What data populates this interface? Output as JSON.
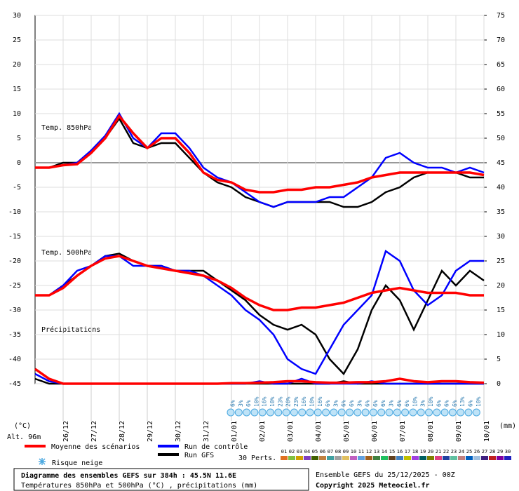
{
  "chart_data": {
    "type": "line",
    "categories": [
      null,
      null,
      "26/12",
      null,
      "27/12",
      null,
      "28/12",
      null,
      "29/12",
      null,
      "30/12",
      null,
      "31/12",
      null,
      "01/01",
      null,
      "02/01",
      null,
      "03/01",
      null,
      "04/01",
      null,
      "05/01",
      null,
      "06/01",
      null,
      "07/01",
      null,
      "08/01",
      null,
      "09/01",
      null,
      "10/01"
    ],
    "ylim": [
      -45,
      30
    ],
    "yticks": [
      30,
      25,
      20,
      15,
      10,
      5,
      0,
      -5,
      -10,
      -15,
      -20,
      -25,
      -30,
      -35,
      -40,
      -45
    ],
    "y2lim": [
      0,
      75
    ],
    "y2ticks": [
      75,
      70,
      65,
      60,
      55,
      50,
      45,
      40,
      35,
      30,
      25,
      20,
      15,
      10,
      5,
      0
    ],
    "y_unit": "(°C)",
    "y2_unit": "(mm)",
    "altitude": "Alt. 96m",
    "panel_labels": [
      "Temp. 850hPa",
      "Temp. 500hPa",
      "Précipitations"
    ],
    "series": [
      {
        "name": "Moyenne des scénarios",
        "color": "#ff0000",
        "t850": [
          -1,
          -1,
          -0.5,
          -0.3,
          2,
          5,
          9.5,
          6,
          3,
          5,
          5,
          2,
          -2,
          -3.5,
          -4,
          -5.5,
          -6,
          -6,
          -5.5,
          -5.5,
          -5,
          -5,
          -4.5,
          -4,
          -3,
          -2.5,
          -2,
          -2,
          -2,
          -2,
          -2,
          -2,
          -2.5
        ],
        "t500": [
          -27,
          -27,
          -25.5,
          -23,
          -21,
          -19.5,
          -19,
          -20,
          -21,
          -21.5,
          -22,
          -22.5,
          -23,
          -24,
          -25.5,
          -27.5,
          -29,
          -30,
          -30,
          -29.5,
          -29.5,
          -29,
          -28.5,
          -27.5,
          -26.5,
          -26,
          -25.5,
          -26,
          -26.5,
          -26.5,
          -26.5,
          -27,
          -27
        ],
        "precip": [
          3,
          1,
          0,
          0,
          0,
          0,
          0,
          0,
          0,
          0,
          0,
          0,
          0,
          0,
          0.1,
          0.1,
          0.2,
          0.3,
          0.5,
          0.5,
          0.3,
          0.2,
          0.2,
          0.3,
          0.3,
          0.5,
          1,
          0.5,
          0.3,
          0.5,
          0.5,
          0.3,
          0.2
        ]
      },
      {
        "name": "Run de contrôle",
        "color": "#0000ff",
        "t850": [
          -1,
          -1,
          -0.5,
          0,
          2.5,
          5.5,
          10,
          5,
          3,
          6,
          6,
          3,
          -1,
          -3,
          -4,
          -6,
          -8,
          -9,
          -8,
          -8,
          -8,
          -7,
          -7,
          -5,
          -3,
          1,
          2,
          0,
          -1,
          -1,
          -2,
          -1,
          -2
        ],
        "t500": [
          -27,
          -27,
          -25,
          -22,
          -21,
          -19,
          -19,
          -21,
          -21,
          -21,
          -22,
          -22,
          -23,
          -25,
          -27,
          -30,
          -32,
          -35,
          -40,
          -42,
          -43,
          -38,
          -33,
          -30,
          -27,
          -18,
          -20,
          -26,
          -29,
          -27,
          -22,
          -20,
          -20
        ],
        "precip": [
          2,
          0.5,
          0,
          0,
          0,
          0,
          0,
          0,
          0,
          0,
          0,
          0,
          0,
          0,
          0,
          0,
          0.5,
          0,
          0,
          1,
          0,
          0,
          0,
          0,
          0.5,
          0,
          0,
          0,
          0,
          0,
          0,
          0,
          0
        ]
      },
      {
        "name": "Run GFS",
        "color": "#000000",
        "t850": [
          -1,
          -1,
          0,
          0,
          2,
          5,
          9,
          4,
          3,
          4,
          4,
          1,
          -2,
          -4,
          -5,
          -7,
          -8,
          -9,
          -8,
          -8,
          -8,
          -8,
          -9,
          -9,
          -8,
          -6,
          -5,
          -3,
          -2,
          -2,
          -2,
          -3,
          -3
        ],
        "t500": [
          -27,
          -27,
          -25,
          -23,
          -21,
          -19,
          -18.5,
          -20,
          -21,
          -21,
          -22,
          -22,
          -22,
          -24,
          -26,
          -28,
          -31,
          -33,
          -34,
          -33,
          -35,
          -40,
          -43,
          -38,
          -30,
          -25,
          -28,
          -34,
          -28,
          -22,
          -25,
          -22,
          -24
        ],
        "precip": [
          1,
          0,
          0,
          0,
          0,
          0,
          0,
          0,
          0,
          0,
          0,
          0,
          0,
          0,
          0,
          0,
          0,
          0,
          0,
          0,
          0,
          0,
          0.5,
          0,
          0,
          0,
          0,
          0,
          0,
          0,
          0,
          0,
          0
        ]
      }
    ],
    "snow_risk": {
      "label": "Risque neige",
      "values": [
        6,
        3,
        6,
        10,
        16,
        10,
        23,
        20,
        23,
        16,
        10,
        16,
        6,
        3,
        6,
        6,
        3,
        6,
        6,
        6,
        3,
        6,
        6,
        10,
        3,
        10,
        6,
        6,
        6,
        13,
        6,
        10
      ],
      "value_labels": [
        "6%",
        "3%",
        "6%",
        "10%",
        "16%",
        "10%",
        "23%",
        "20%",
        "23%",
        "16%",
        "10%",
        "16%",
        "6%",
        "3%",
        "6%",
        "6%",
        "3%",
        "6%",
        "6%",
        "6%",
        "3%",
        "6%",
        "6%",
        "10%",
        "3%",
        "10%",
        "6%",
        "6%",
        "6%",
        "13%",
        "6%",
        "10%"
      ]
    },
    "perturbations": {
      "label": "30 Perts.",
      "names": [
        "01",
        "02",
        "03",
        "04",
        "05",
        "06",
        "07",
        "08",
        "09",
        "10",
        "11",
        "12",
        "13",
        "14",
        "15",
        "16",
        "17",
        "18",
        "19",
        "20",
        "21",
        "22",
        "23",
        "24",
        "25",
        "26",
        "27",
        "28",
        "29",
        "30"
      ],
      "colors": [
        "#e07020",
        "#80c040",
        "#d0a000",
        "#8040c0",
        "#406000",
        "#c08040",
        "#40a0a0",
        "#a0a0a0",
        "#e0c060",
        "#c060c0",
        "#60a0e0",
        "#a06020",
        "#408040",
        "#20c060",
        "#604020",
        "#4080c0",
        "#c0c000",
        "#a040e0",
        "#006060",
        "#808000",
        "#e04080",
        "#2040a0",
        "#60c0a0",
        "#c08080",
        "#0060c0",
        "#a0c0e0",
        "#402080",
        "#c02020",
        "#8000a0",
        "#2020c0"
      ]
    },
    "footer": {
      "title": "Diagramme des ensembles GEFS sur 384h : 45.5N 11.6E",
      "subtitle": "Températures 850hPa et 500hPa (°C) , précipitations (mm)",
      "run": "Ensemble GEFS du 25/12/2025 - 00Z",
      "copyright": "Copyright 2025 Meteociel.fr"
    }
  }
}
